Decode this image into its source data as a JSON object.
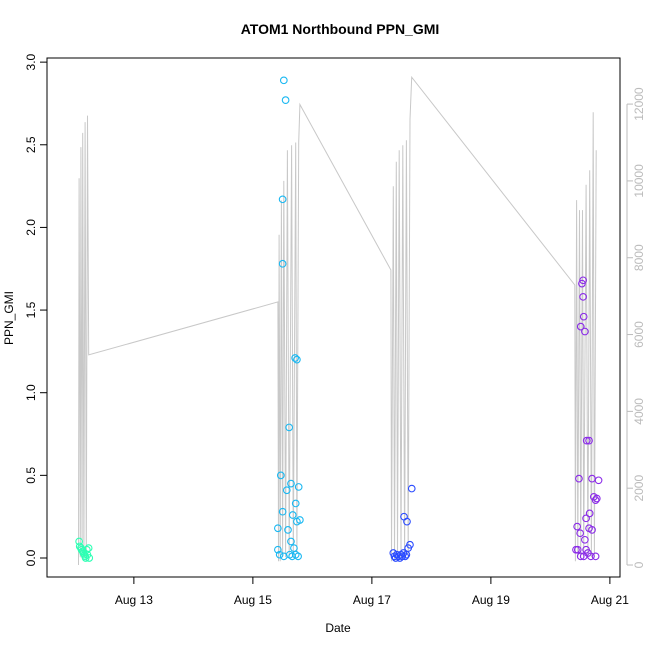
{
  "chart_data": {
    "type": "scatter",
    "title": "ATOM1 Northbound PPN_GMI",
    "x_label": "Date",
    "y_label": "PPN_GMI",
    "xlim": [
      11.54,
      21.17
    ],
    "xticks": [
      {
        "value": 13,
        "label": "Aug 13"
      },
      {
        "value": 15,
        "label": "Aug 15"
      },
      {
        "value": 17,
        "label": "Aug 17"
      },
      {
        "value": 19,
        "label": "Aug 19"
      },
      {
        "value": 21,
        "label": "Aug 21"
      }
    ],
    "ylim": [
      -0.115,
      3.025
    ],
    "yticks": [
      {
        "value": 0,
        "label": "0.0"
      },
      0.5,
      {
        "value": 1,
        "label": "1.0"
      },
      1.5,
      {
        "value": 2,
        "label": "2.0"
      },
      2.5,
      {
        "value": 3,
        "label": "3.0"
      }
    ],
    "y2lim": [
      -312,
      13200
    ],
    "y2ticks": [
      0,
      2000,
      4000,
      6000,
      8000,
      10000,
      12000
    ],
    "y2_color": "#bbbbbb",
    "series": [
      {
        "type": "scatter",
        "color": "#2effb4",
        "x": [
          12.08,
          12.09,
          12.11,
          12.12,
          12.14,
          12.15,
          12.17,
          12.18,
          12.19,
          12.21,
          12.22,
          12.24,
          12.25
        ],
        "values": [
          0.1,
          0.07,
          0.06,
          0.05,
          0.04,
          0.03,
          0.02,
          0.01,
          0.0,
          0.05,
          0.02,
          0.06,
          0.0
        ]
      },
      {
        "type": "scatter",
        "color": "#1ab8f2",
        "x": [
          15.52,
          15.55,
          15.5,
          15.5,
          15.71,
          15.74,
          15.61,
          15.47,
          15.64,
          15.5,
          15.57,
          15.77,
          15.72,
          15.67,
          15.74,
          15.79,
          15.42,
          15.59,
          15.64,
          15.69,
          15.42,
          15.45,
          15.52,
          15.62,
          15.66,
          15.72,
          15.76
        ],
        "values": [
          2.89,
          2.77,
          2.17,
          1.78,
          1.21,
          1.2,
          0.79,
          0.5,
          0.45,
          0.28,
          0.41,
          0.43,
          0.33,
          0.26,
          0.22,
          0.23,
          0.18,
          0.17,
          0.1,
          0.06,
          0.05,
          0.02,
          0.01,
          0.02,
          0.01,
          0.02,
          0.01
        ]
      },
      {
        "type": "scatter",
        "color": "#2a4bff",
        "x": [
          17.67,
          17.54,
          17.59,
          17.64,
          17.61,
          17.36,
          17.38,
          17.4,
          17.42,
          17.45,
          17.47,
          17.49,
          17.51,
          17.53,
          17.56,
          17.58
        ],
        "values": [
          0.42,
          0.25,
          0.22,
          0.08,
          0.06,
          0.03,
          0.01,
          0.0,
          0.02,
          0.01,
          0.0,
          0.02,
          0.01,
          0.03,
          0.01,
          0.02
        ]
      },
      {
        "type": "scatter",
        "color": "#8b2be8",
        "x": [
          20.55,
          20.53,
          20.55,
          20.56,
          20.51,
          20.58,
          20.61,
          20.65,
          20.48,
          20.7,
          20.73,
          20.78,
          20.81,
          20.66,
          20.6,
          20.76,
          20.45,
          20.65,
          20.7,
          20.5,
          20.58,
          20.43,
          20.46,
          20.6,
          20.63,
          20.51,
          20.68,
          20.76,
          20.56
        ],
        "values": [
          1.68,
          1.66,
          1.58,
          1.46,
          1.4,
          1.37,
          0.71,
          0.71,
          0.48,
          0.48,
          0.37,
          0.36,
          0.47,
          0.27,
          0.24,
          0.35,
          0.19,
          0.18,
          0.17,
          0.15,
          0.11,
          0.05,
          0.05,
          0.05,
          0.03,
          0.01,
          0.01,
          0.01,
          0.01
        ]
      },
      {
        "type": "line",
        "axis": "y2",
        "color": "#c8c8c8",
        "x": [
          12.07,
          12.08,
          12.1,
          12.11,
          12.13,
          12.14,
          12.16,
          12.18,
          12.2,
          12.22,
          12.24,
          15.42,
          15.43,
          15.44,
          15.46,
          15.48,
          15.5,
          15.52,
          15.55,
          15.58,
          15.61,
          15.65,
          15.68,
          15.72,
          15.74,
          15.77,
          15.79,
          17.32,
          17.33,
          17.36,
          17.38,
          17.41,
          17.43,
          17.46,
          17.49,
          17.52,
          17.55,
          17.58,
          17.61,
          17.64,
          17.67,
          20.41,
          20.42,
          20.44,
          20.46,
          20.49,
          20.51,
          20.54,
          20.56,
          20.6,
          20.63,
          20.66,
          20.69,
          20.72,
          20.74,
          20.77
        ],
        "values": [
          0,
          10070,
          200,
          10880,
          300,
          11250,
          200,
          11530,
          100,
          11700,
          5470,
          6850,
          100,
          8600,
          100,
          9490,
          200,
          10000,
          200,
          10800,
          200,
          10930,
          200,
          11000,
          300,
          11000,
          11990,
          7680,
          100,
          9860,
          100,
          10500,
          100,
          10800,
          200,
          10930,
          200,
          11060,
          200,
          11600,
          12700,
          7290,
          100,
          9500,
          200,
          9240,
          200,
          9240,
          200,
          9900,
          200,
          10280,
          200,
          11790,
          200,
          10800
        ]
      }
    ]
  }
}
